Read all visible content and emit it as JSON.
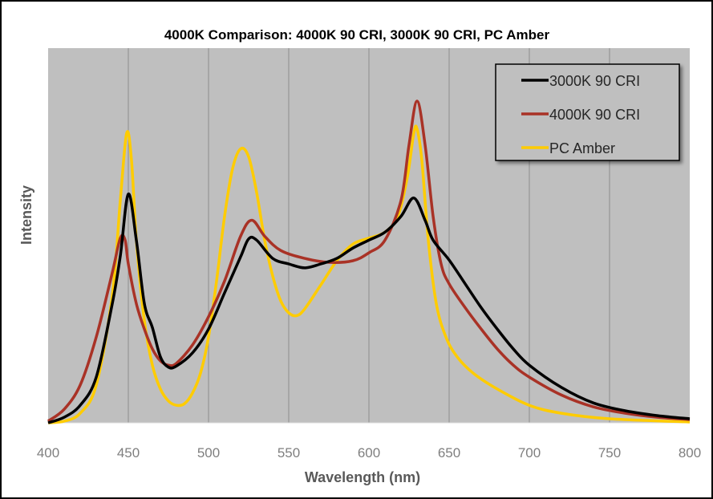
{
  "chart_data": {
    "type": "line",
    "title": "4000K Comparison: 4000K 90 CRI, 3000K 90 CRI, PC Amber",
    "xlabel": "Wavelength (nm)",
    "ylabel": "Intensity",
    "xlim": [
      400,
      800
    ],
    "ylim": [
      0,
      1
    ],
    "x_ticks": [
      400,
      450,
      500,
      550,
      600,
      650,
      700,
      750,
      800
    ],
    "y_ticks_shown": false,
    "grid": "vertical",
    "legend_position": "top-right",
    "background_color": "#bfbfbf",
    "series": [
      {
        "name": "3000K 90 CRI",
        "color": "#000000",
        "x": [
          400,
          410,
          420,
          430,
          440,
          445,
          450,
          455,
          460,
          465,
          470,
          475,
          480,
          490,
          500,
          510,
          520,
          525,
          530,
          540,
          550,
          560,
          570,
          580,
          590,
          600,
          610,
          620,
          628,
          635,
          640,
          650,
          660,
          670,
          680,
          690,
          700,
          720,
          740,
          760,
          780,
          800
        ],
        "y": [
          0,
          0.014,
          0.044,
          0.115,
          0.3,
          0.42,
          0.576,
          0.46,
          0.3,
          0.24,
          0.166,
          0.14,
          0.143,
          0.176,
          0.236,
          0.327,
          0.418,
          0.463,
          0.46,
          0.414,
          0.4,
          0.39,
          0.4,
          0.414,
          0.44,
          0.46,
          0.48,
          0.52,
          0.566,
          0.51,
          0.46,
          0.41,
          0.35,
          0.29,
          0.236,
          0.186,
          0.145,
          0.089,
          0.05,
          0.03,
          0.018,
          0.01
        ]
      },
      {
        "name": "4000K 90 CRI",
        "color": "#a93226",
        "x": [
          400,
          410,
          420,
          430,
          440,
          445,
          448,
          450,
          455,
          460,
          465,
          470,
          475,
          480,
          490,
          500,
          510,
          520,
          527,
          535,
          545,
          560,
          575,
          590,
          600,
          610,
          620,
          625,
          630,
          635,
          640,
          645,
          650,
          660,
          670,
          680,
          690,
          700,
          720,
          740,
          760,
          780,
          800
        ],
        "y": [
          0.004,
          0.034,
          0.095,
          0.216,
          0.378,
          0.465,
          0.46,
          0.4,
          0.3,
          0.236,
          0.186,
          0.156,
          0.145,
          0.15,
          0.196,
          0.267,
          0.357,
          0.47,
          0.51,
          0.47,
          0.434,
          0.414,
          0.404,
          0.408,
          0.428,
          0.46,
          0.56,
          0.7,
          0.81,
          0.7,
          0.52,
          0.4,
          0.35,
          0.29,
          0.236,
          0.186,
          0.145,
          0.115,
          0.07,
          0.04,
          0.024,
          0.014,
          0.008
        ]
      },
      {
        "name": "PC Amber",
        "color": "#ffcc00",
        "x": [
          400,
          410,
          420,
          430,
          440,
          445,
          449,
          452,
          455,
          460,
          465,
          470,
          475,
          480,
          485,
          490,
          495,
          500,
          505,
          510,
          515,
          520,
          525,
          530,
          535,
          540,
          545,
          550,
          555,
          560,
          570,
          580,
          590,
          600,
          610,
          618,
          624,
          628,
          630,
          633,
          637,
          642,
          648,
          655,
          665,
          680,
          700,
          720,
          750,
          800
        ],
        "y": [
          0,
          0.004,
          0.024,
          0.095,
          0.32,
          0.56,
          0.73,
          0.66,
          0.46,
          0.257,
          0.145,
          0.085,
          0.055,
          0.044,
          0.048,
          0.075,
          0.125,
          0.216,
          0.357,
          0.52,
          0.64,
          0.69,
          0.67,
          0.58,
          0.46,
          0.37,
          0.307,
          0.277,
          0.27,
          0.287,
          0.347,
          0.408,
          0.45,
          0.465,
          0.48,
          0.52,
          0.62,
          0.73,
          0.74,
          0.66,
          0.46,
          0.3,
          0.216,
          0.166,
          0.125,
          0.085,
          0.044,
          0.024,
          0.01,
          0.002
        ]
      }
    ]
  }
}
